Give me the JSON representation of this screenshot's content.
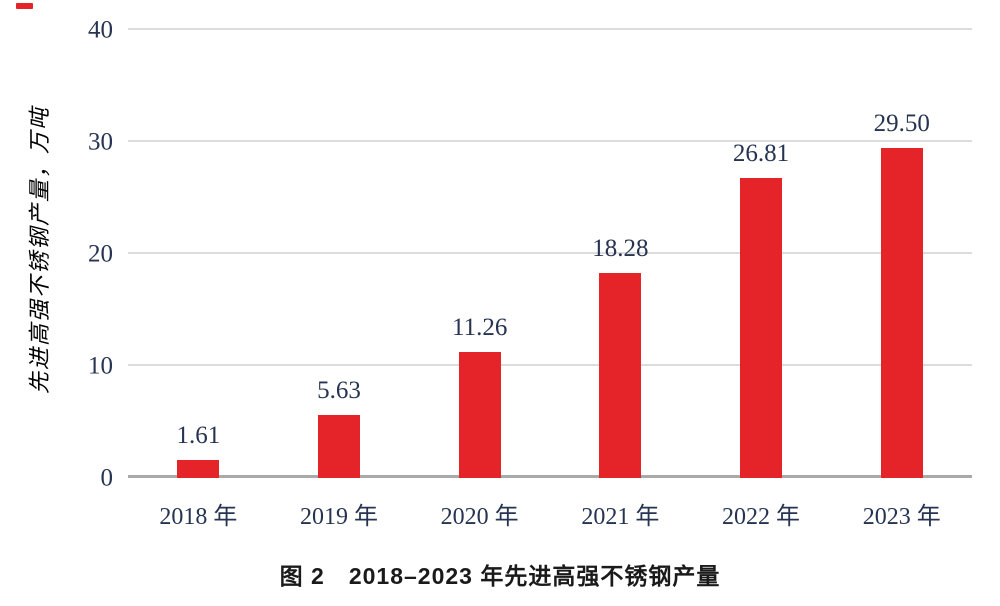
{
  "caption": "图 2　2018–2023 年先进高强不锈钢产量",
  "chart_data": {
    "type": "bar",
    "title": "图 2　2018–2023 年先进高强不锈钢产量",
    "xlabel": "",
    "ylabel": "先进高强不锈钢产量，万吨",
    "categories": [
      "2018 年",
      "2019 年",
      "2020 年",
      "2021 年",
      "2022 年",
      "2023 年"
    ],
    "values": [
      1.61,
      5.63,
      11.26,
      18.28,
      26.81,
      29.5
    ],
    "data_labels": [
      "1.61",
      "5.63",
      "11.26",
      "18.28",
      "26.81",
      "29.50"
    ],
    "ylim": [
      0,
      40
    ],
    "yticks": [
      0,
      10,
      20,
      30,
      40
    ],
    "grid": "horizontal",
    "legend_position": "none",
    "colors": {
      "bar": "#e42428",
      "axis_text": "#263452",
      "gridline": "#dcdcdc",
      "axis_line": "#a9a9a9",
      "caption": "#1a1a1a"
    }
  }
}
